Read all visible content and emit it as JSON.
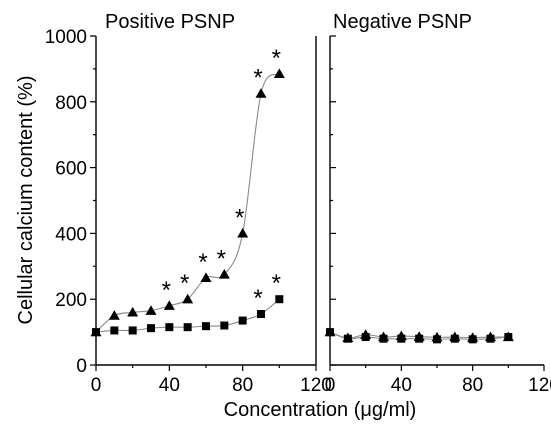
{
  "chart_data": [
    {
      "type": "scatter",
      "title": "Positive PSNP",
      "ylabel": "Cellular calcium content (%)",
      "xlim": [
        0,
        120
      ],
      "ylim": [
        0,
        1000
      ],
      "x_ticks": [
        "0",
        "40",
        "80",
        "120"
      ],
      "y_ticks": [
        "0",
        "200",
        "400",
        "600",
        "800",
        "1000"
      ],
      "series": [
        {
          "marker": "triangle",
          "x": [
            0,
            10,
            20,
            30,
            40,
            50,
            60,
            70,
            80,
            90,
            100
          ],
          "y": [
            100,
            150,
            160,
            165,
            180,
            200,
            265,
            275,
            400,
            825,
            885
          ],
          "significant": [
            false,
            false,
            false,
            false,
            true,
            true,
            true,
            true,
            true,
            true,
            true
          ]
        },
        {
          "marker": "square",
          "x": [
            0,
            10,
            20,
            30,
            40,
            50,
            60,
            70,
            80,
            90,
            100
          ],
          "y": [
            100,
            105,
            105,
            112,
            115,
            115,
            118,
            120,
            135,
            155,
            200
          ],
          "significant": [
            false,
            false,
            false,
            false,
            false,
            false,
            false,
            false,
            false,
            true,
            true
          ]
        }
      ],
      "annotation_symbol": "*"
    },
    {
      "type": "scatter",
      "title": "Negative PSNP",
      "xlim": [
        0,
        120
      ],
      "ylim": [
        0,
        1000
      ],
      "x_ticks": [
        "0",
        "40",
        "80",
        "120"
      ],
      "series": [
        {
          "marker": "triangle",
          "x": [
            0,
            10,
            20,
            30,
            40,
            50,
            60,
            70,
            80,
            90,
            100
          ],
          "y": [
            100,
            82,
            92,
            85,
            88,
            86,
            84,
            85,
            83,
            85,
            85
          ]
        },
        {
          "marker": "square",
          "x": [
            0,
            10,
            20,
            30,
            40,
            50,
            60,
            70,
            80,
            90,
            100
          ],
          "y": [
            100,
            80,
            85,
            80,
            80,
            80,
            78,
            80,
            78,
            80,
            85
          ]
        }
      ]
    }
  ],
  "shared_xlabel": "Concentration (μg/ml)"
}
